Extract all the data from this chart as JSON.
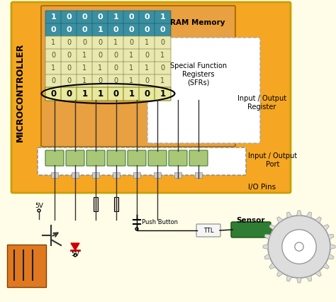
{
  "bg_color": "#fffde7",
  "mc_bg": "#f5a623",
  "ram_bg": "#e8a040",
  "white_box_bg": "#ffffff",
  "teal_color": "#3a8fa0",
  "sfr_cell_bg": "#e8e8b0",
  "io_reg_bg": "#e8e8a0",
  "io_port_bg": "#a8c878",
  "pin_gray": "#cccccc",
  "title_text": "MICROCONTROLLER",
  "ram_label": "RAM Memory",
  "sfr_label": "Special Function\nRegisters\n(SFRs)",
  "io_reg_label": "Input / Output\nRegister",
  "io_port_label": "Input / Output\nPort",
  "io_pins_label": "I/O Pins",
  "sensor_label": "Sensor",
  "push_button_label": "Push Button",
  "ttl_label": "TTL",
  "fivev_label": "5V",
  "ram_row1": [
    "1",
    "0",
    "0",
    "0",
    "1",
    "0",
    "0",
    "1"
  ],
  "ram_row2": [
    "0",
    "0",
    "0",
    "1",
    "0",
    "0",
    "0",
    "0"
  ],
  "sfr_rows": [
    [
      "1",
      "0",
      "0",
      "0",
      "1",
      "0",
      "1",
      "0"
    ],
    [
      "0",
      "0",
      "1",
      "0",
      "0",
      "1",
      "0",
      "1"
    ],
    [
      "1",
      "0",
      "1",
      "1",
      "0",
      "1",
      "1",
      "0"
    ],
    [
      "0",
      "0",
      "1",
      "0",
      "0",
      "1",
      "0",
      "1"
    ]
  ],
  "io_reg_row": [
    "0",
    "0",
    "1",
    "1",
    "0",
    "1",
    "0",
    "1"
  ],
  "gear_color": "#dddddd",
  "gear_line_color": "#999999",
  "sensor_green": "#2e7d32",
  "diode_red": "#cc0000",
  "transistor_color": "#333333",
  "orange_box": "#e07820",
  "wire_color": "#333333"
}
